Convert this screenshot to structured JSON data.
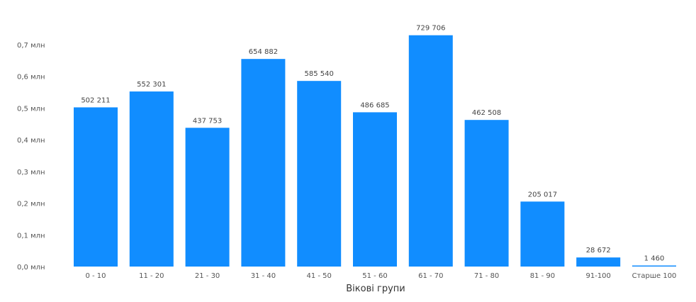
{
  "chart_data": {
    "type": "bar",
    "title": "",
    "xlabel": "Вікові групи",
    "ylabel": "",
    "ylim": [
      0,
      0.7
    ],
    "yticks": [
      {
        "value": 0.0,
        "label": "0,0 млн"
      },
      {
        "value": 0.1,
        "label": "0,1 млн"
      },
      {
        "value": 0.2,
        "label": "0,2 млн"
      },
      {
        "value": 0.3,
        "label": "0,3 млн"
      },
      {
        "value": 0.4,
        "label": "0,4 млн"
      },
      {
        "value": 0.5,
        "label": "0,5 млн"
      },
      {
        "value": 0.6,
        "label": "0,6 млн"
      },
      {
        "value": 0.7,
        "label": "0,7 млн"
      }
    ],
    "grid": false,
    "color": "#118DFF",
    "categories": [
      "0 - 10",
      "11 - 20",
      "21 - 30",
      "31 - 40",
      "41 - 50",
      "51 - 60",
      "61 - 70",
      "71 - 80",
      "81 - 90",
      "91-100",
      "Старше 100"
    ],
    "values": [
      502211,
      552301,
      437753,
      654882,
      585540,
      486685,
      729706,
      462508,
      205017,
      28672,
      1460
    ],
    "value_labels": [
      "502 211",
      "552 301",
      "437 753",
      "654 882",
      "585 540",
      "486 685",
      "729 706",
      "462 508",
      "205 017",
      "28 672",
      "1 460"
    ]
  }
}
